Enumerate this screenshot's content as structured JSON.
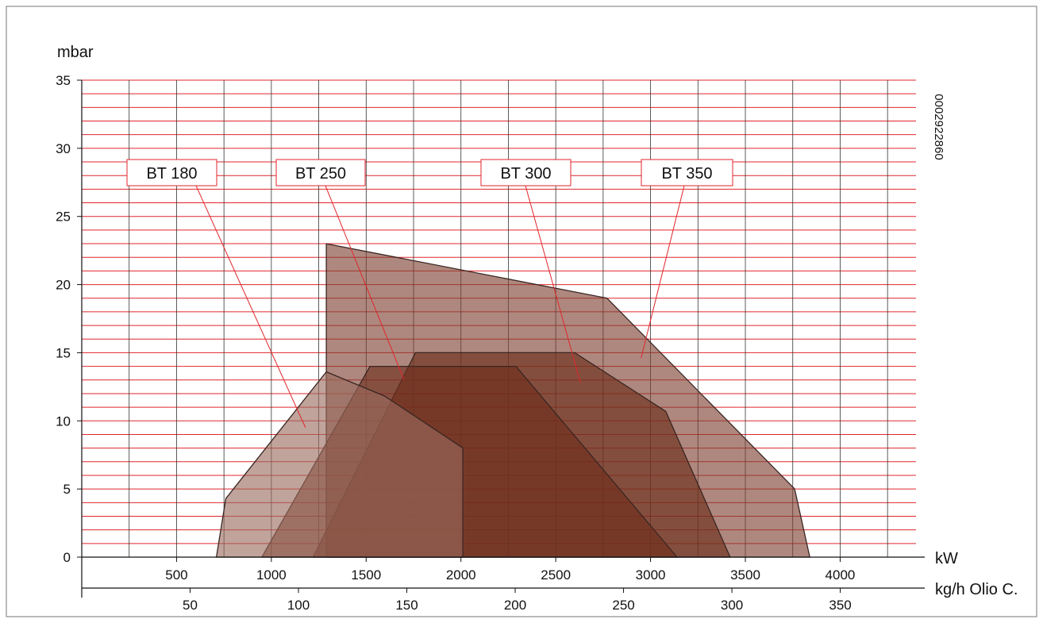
{
  "chart_data": {
    "type": "area",
    "ylabel": "mbar",
    "xlabel": "kW",
    "secondary_xlabel": "kg/h Olio C.",
    "doc_code": "0002922860",
    "ylim": [
      0,
      35
    ],
    "yticks": [
      0,
      5,
      10,
      15,
      20,
      25,
      30,
      35
    ],
    "xlim": [
      0,
      4400
    ],
    "xticks": [
      500,
      1000,
      1500,
      2000,
      2500,
      3000,
      3500,
      4000
    ],
    "secondary_xticks": [
      50,
      100,
      150,
      200,
      250,
      300,
      350
    ],
    "grid": true,
    "series": [
      {
        "name": "BT 350",
        "color": "#7d3f31",
        "points": [
          [
            1290,
            0
          ],
          [
            1290,
            23
          ],
          [
            2770,
            19
          ],
          [
            3760,
            5
          ],
          [
            3840,
            0
          ]
        ]
      },
      {
        "name": "BT 300",
        "color": "#6a2a17",
        "points": [
          [
            1220,
            0
          ],
          [
            1760,
            15
          ],
          [
            2600,
            15
          ],
          [
            3080,
            10.7
          ],
          [
            3420,
            0
          ]
        ]
      },
      {
        "name": "BT 250",
        "color": "#6e2d1c",
        "points": [
          [
            950,
            0
          ],
          [
            1520,
            14
          ],
          [
            2290,
            14
          ],
          [
            3140,
            0
          ]
        ]
      },
      {
        "name": "BT 180",
        "color": "#9a6a5e",
        "points": [
          [
            710,
            0
          ],
          [
            760,
            4.3
          ],
          [
            1290,
            13.6
          ],
          [
            1600,
            11.8
          ],
          [
            2010,
            8
          ],
          [
            2010,
            0
          ]
        ]
      }
    ],
    "labels": [
      {
        "text": "BT 180",
        "target": [
          1180,
          9.5
        ]
      },
      {
        "text": "BT 250",
        "target": [
          1700,
          13
        ]
      },
      {
        "text": "BT 300",
        "target": [
          2630,
          12.8
        ]
      },
      {
        "text": "BT 350",
        "target": [
          2950,
          14.6
        ]
      }
    ]
  }
}
